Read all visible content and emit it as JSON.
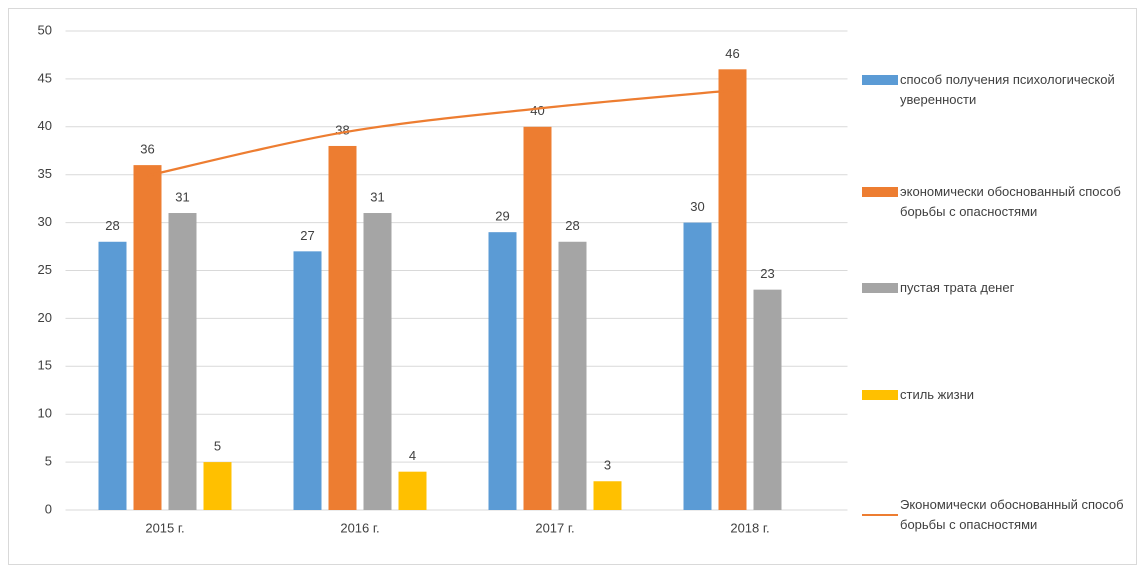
{
  "chart_data": {
    "type": "bar",
    "categories": [
      "2015 г.",
      "2016 г.",
      "2017 г.",
      "2018 г."
    ],
    "series": [
      {
        "name": "способ получения психологической уверенности",
        "color": "#5b9bd5",
        "values": [
          28,
          27,
          29,
          30
        ]
      },
      {
        "name": "экономически обоснованный способ борьбы с опасностями",
        "color": "#ed7d31",
        "values": [
          36,
          38,
          40,
          46
        ]
      },
      {
        "name": "пустая трата денег",
        "color": "#a5a5a5",
        "values": [
          31,
          31,
          28,
          23
        ]
      },
      {
        "name": "стиль жизни",
        "color": "#ffc000",
        "values": [
          5,
          4,
          3,
          null
        ]
      },
      {
        "name": "Экономически обоснованный способ борьбы с опасностями",
        "color": "#ed7d31",
        "type": "line",
        "values": [
          34.9,
          39.4,
          41.9,
          43.8
        ]
      }
    ],
    "ylim": [
      0,
      50
    ],
    "yticks": [
      0,
      5,
      10,
      15,
      20,
      25,
      30,
      35,
      40,
      45,
      50
    ],
    "grid": true,
    "legend": "right"
  }
}
